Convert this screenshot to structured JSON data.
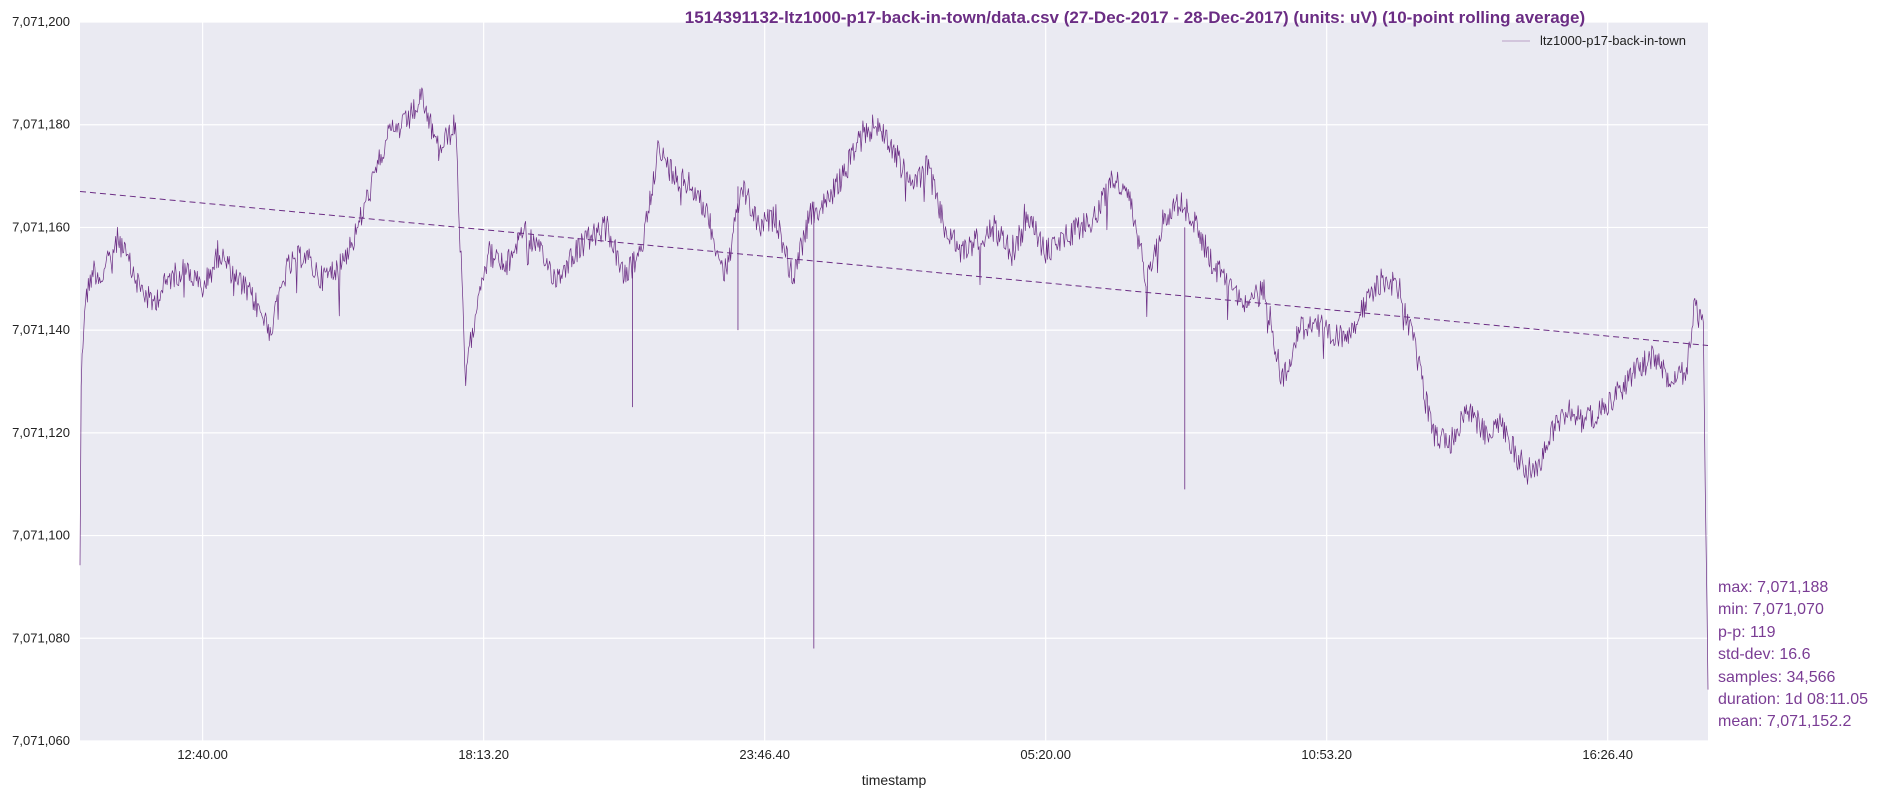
{
  "chart_data": {
    "type": "line",
    "title": "1514391132-ltz1000-p17-back-in-town/data.csv (27-Dec-2017 - 28-Dec-2017) (units: uV) (10-point rolling average)",
    "xlabel": "timestamp",
    "ylabel": "",
    "ylim": [
      7071060,
      7071200
    ],
    "yticks": [
      "7,071,060",
      "7,071,080",
      "7,071,100",
      "7,071,120",
      "7,071,140",
      "7,071,160",
      "7,071,180",
      "7,071,200"
    ],
    "xlim": [
      "27-Dec-2017 10:14:33",
      "28-Dec-2017 18:25:38"
    ],
    "xticks": [
      {
        "label": "12:40.00",
        "time": "27-Dec-2017 12:40:00"
      },
      {
        "label": "18:13.20",
        "time": "27-Dec-2017 18:13:20"
      },
      {
        "label": "23:46.40",
        "time": "27-Dec-2017 23:46:40"
      },
      {
        "label": "05:20.00",
        "time": "28-Dec-2017 05:20:00"
      },
      {
        "label": "10:53.20",
        "time": "28-Dec-2017 10:53:20"
      },
      {
        "label": "16:26.40",
        "time": "28-Dec-2017 16:26:40"
      }
    ],
    "grid": true,
    "legend_position": "top-right",
    "series": [
      {
        "name": "ltz1000-p17-back-in-town",
        "color": "#6b2d84",
        "style": "solid",
        "x": [
          "27-Dec-2017 10:14:33",
          "27-Dec-2017 10:16:00",
          "27-Dec-2017 10:20:00",
          "27-Dec-2017 10:30:00",
          "27-Dec-2017 10:40:00",
          "27-Dec-2017 11:00:00",
          "27-Dec-2017 11:20:00",
          "27-Dec-2017 11:40:00",
          "27-Dec-2017 12:00:00",
          "27-Dec-2017 12:20:00",
          "27-Dec-2017 12:40:00",
          "27-Dec-2017 13:00:00",
          "27-Dec-2017 13:20:00",
          "27-Dec-2017 13:40:00",
          "27-Dec-2017 14:00:00",
          "27-Dec-2017 14:20:00",
          "27-Dec-2017 14:40:00",
          "27-Dec-2017 15:00:00",
          "27-Dec-2017 15:20:00",
          "27-Dec-2017 15:40:00",
          "27-Dec-2017 16:00:00",
          "27-Dec-2017 16:20:00",
          "27-Dec-2017 16:40:00",
          "27-Dec-2017 17:00:00",
          "27-Dec-2017 17:20:00",
          "27-Dec-2017 17:40:00",
          "27-Dec-2017 17:52:00",
          "27-Dec-2017 18:00:00",
          "27-Dec-2017 18:10:00",
          "27-Dec-2017 18:20:00",
          "27-Dec-2017 18:40:00",
          "27-Dec-2017 19:00:00",
          "27-Dec-2017 19:20:00",
          "27-Dec-2017 19:40:00",
          "27-Dec-2017 20:00:00",
          "27-Dec-2017 20:20:00",
          "27-Dec-2017 20:40:00",
          "27-Dec-2017 21:00:00",
          "27-Dec-2017 21:20:00",
          "27-Dec-2017 21:40:00",
          "27-Dec-2017 22:00:00",
          "27-Dec-2017 22:20:00",
          "27-Dec-2017 22:40:00",
          "27-Dec-2017 23:00:00",
          "27-Dec-2017 23:20:00",
          "27-Dec-2017 23:40:00",
          "28-Dec-2017 00:00:00",
          "28-Dec-2017 00:20:00",
          "28-Dec-2017 00:40:00",
          "28-Dec-2017 01:00:00",
          "28-Dec-2017 01:20:00",
          "28-Dec-2017 01:40:00",
          "28-Dec-2017 02:00:00",
          "28-Dec-2017 02:20:00",
          "28-Dec-2017 02:40:00",
          "28-Dec-2017 03:00:00",
          "28-Dec-2017 03:20:00",
          "28-Dec-2017 03:40:00",
          "28-Dec-2017 04:00:00",
          "28-Dec-2017 04:20:00",
          "28-Dec-2017 04:40:00",
          "28-Dec-2017 05:00:00",
          "28-Dec-2017 05:20:00",
          "28-Dec-2017 05:40:00",
          "28-Dec-2017 06:00:00",
          "28-Dec-2017 06:20:00",
          "28-Dec-2017 06:40:00",
          "28-Dec-2017 07:00:00",
          "28-Dec-2017 07:20:00",
          "28-Dec-2017 07:40:00",
          "28-Dec-2017 08:00:00",
          "28-Dec-2017 08:20:00",
          "28-Dec-2017 08:40:00",
          "28-Dec-2017 09:00:00",
          "28-Dec-2017 09:20:00",
          "28-Dec-2017 09:40:00",
          "28-Dec-2017 10:00:00",
          "28-Dec-2017 10:20:00",
          "28-Dec-2017 10:40:00",
          "28-Dec-2017 11:00:00",
          "28-Dec-2017 11:20:00",
          "28-Dec-2017 11:40:00",
          "28-Dec-2017 12:00:00",
          "28-Dec-2017 12:20:00",
          "28-Dec-2017 12:40:00",
          "28-Dec-2017 13:00:00",
          "28-Dec-2017 13:20:00",
          "28-Dec-2017 13:40:00",
          "28-Dec-2017 14:00:00",
          "28-Dec-2017 14:20:00",
          "28-Dec-2017 14:40:00",
          "28-Dec-2017 15:00:00",
          "28-Dec-2017 15:20:00",
          "28-Dec-2017 15:40:00",
          "28-Dec-2017 16:00:00",
          "28-Dec-2017 16:20:00",
          "28-Dec-2017 16:40:00",
          "28-Dec-2017 17:00:00",
          "28-Dec-2017 17:20:00",
          "28-Dec-2017 17:40:00",
          "28-Dec-2017 18:00:00",
          "28-Dec-2017 18:10:00",
          "28-Dec-2017 18:20:00",
          "28-Dec-2017 18:25:38"
        ],
        "y": [
          7071095,
          7071130,
          7071145,
          7071152,
          7071150,
          7071158,
          7071150,
          7071145,
          7071150,
          7071152,
          7071148,
          7071155,
          7071150,
          7071146,
          7071140,
          7071152,
          7071155,
          7071150,
          7071152,
          7071158,
          7071168,
          7071178,
          7071180,
          7071185,
          7071175,
          7071180,
          7071130,
          7071140,
          7071150,
          7071155,
          7071152,
          7071160,
          7071155,
          7071150,
          7071155,
          7071158,
          7071160,
          7071150,
          7071155,
          7071175,
          7071170,
          7071168,
          7071162,
          7071150,
          7071168,
          7071160,
          7071162,
          7071150,
          7071162,
          7071165,
          7071170,
          7071178,
          7071180,
          7071175,
          7071168,
          7071172,
          7071160,
          7071155,
          7071158,
          7071160,
          7071155,
          7071162,
          7071155,
          7071158,
          7071160,
          7071162,
          7071170,
          7071165,
          7071150,
          7071162,
          7071165,
          7071160,
          7071152,
          7071150,
          7071145,
          7071148,
          7071130,
          7071140,
          7071142,
          7071138,
          7071140,
          7071145,
          7071150,
          7071148,
          7071135,
          7071120,
          7071118,
          7071125,
          7071120,
          7071122,
          7071115,
          7071112,
          7071120,
          7071125,
          7071122,
          7071125,
          7071128,
          7071132,
          7071135,
          7071130,
          7071132,
          7071145,
          7071140,
          7071070
        ]
      },
      {
        "style": "dashed",
        "color": "#6b2d84",
        "x": [
          "27-Dec-2017 10:14:33",
          "28-Dec-2017 18:25:38"
        ],
        "y": [
          7071167,
          7071137
        ]
      }
    ],
    "spikes": [
      {
        "time": "27-Dec-2017 21:10:00",
        "y": 7071125
      },
      {
        "time": "27-Dec-2017 23:15:00",
        "y": 7071140
      },
      {
        "time": "28-Dec-2017 00:45:00",
        "y": 7071078
      },
      {
        "time": "28-Dec-2017 08:05:00",
        "y": 7071109
      }
    ]
  },
  "legend": {
    "label": "ltz1000-p17-back-in-town"
  },
  "stats": [
    "max: 7,071,188",
    "min: 7,071,070",
    "p-p: 119",
    "std-dev: 16.6",
    "samples: 34,566",
    "duration: 1d 08:11.05",
    "mean: 7,071,152.2"
  ],
  "colors": {
    "accent": "#6b2d84",
    "plot_background": "#eaeaf2",
    "grid": "#ffffff",
    "stats_text": "#7a3c94"
  }
}
